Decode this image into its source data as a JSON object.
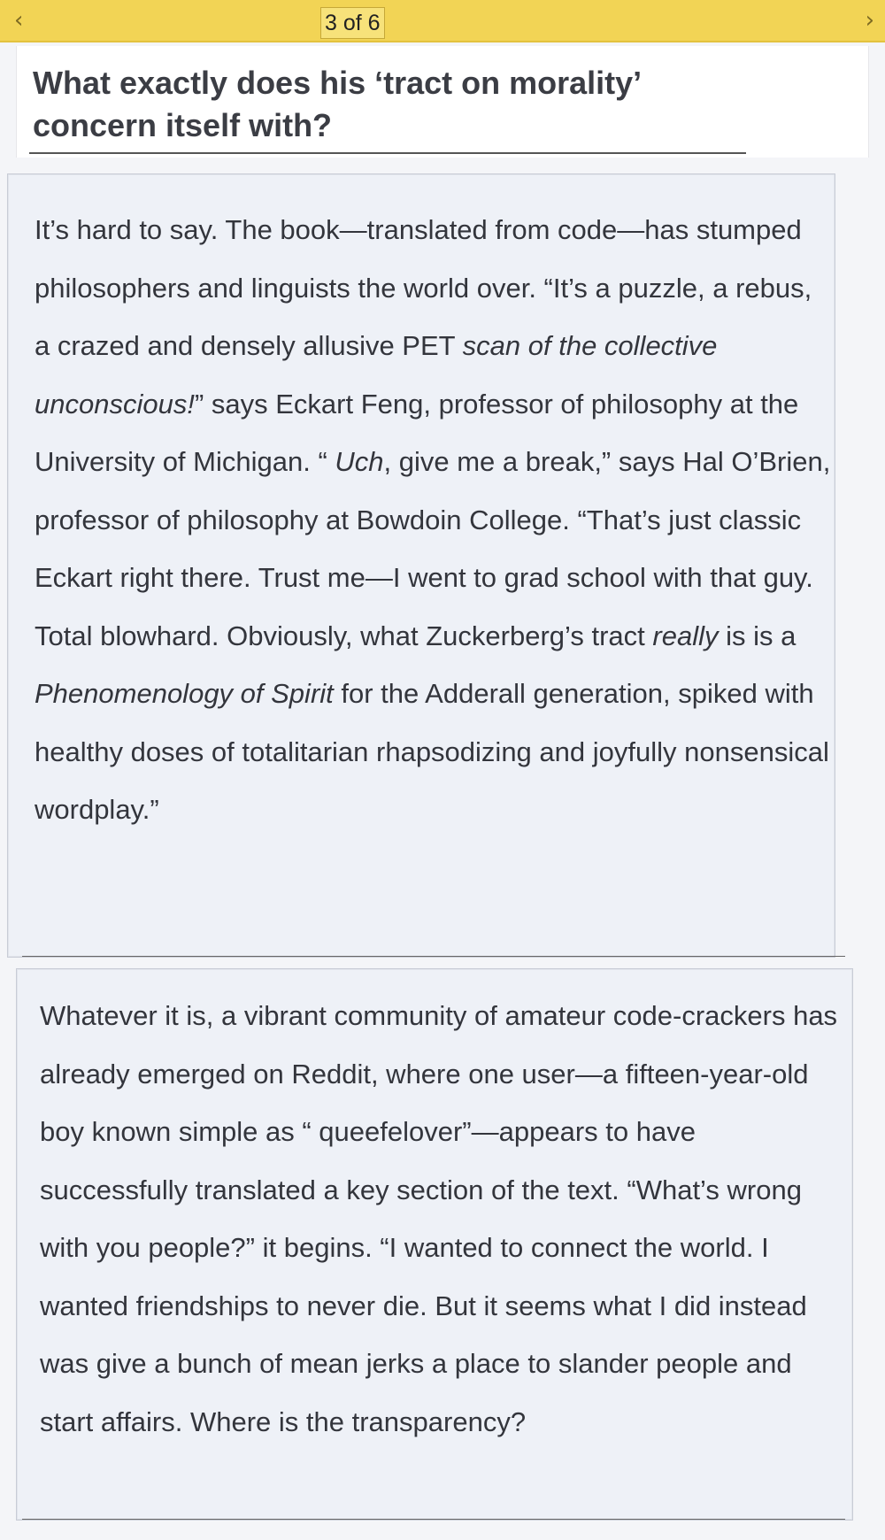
{
  "nav": {
    "prev_icon": "‹",
    "next_icon": "›",
    "page_indicator": "3 of 6"
  },
  "heading": "What exactly does his ‘tract on morality’ concern itself with?",
  "paragraph_1": [
    {
      "text": "It’s hard to say. The book—translated from code—has stumped philosophers and linguists the world over. “It’s a puzzle, a rebus, a crazed and densely allusive PET ",
      "italic": false
    },
    {
      "text": "scan of the collective unconscious!",
      "italic": true
    },
    {
      "text": "” says Eckart Feng, professor of philosophy at the University of Michigan. “ ",
      "italic": false
    },
    {
      "text": "Uch",
      "italic": true
    },
    {
      "text": ", give me a break,” says Hal O’Brien, professor of philosophy at Bowdoin College. “That’s just classic Eckart right there. Trust me—I went to grad school with that guy. Total blowhard. Obviously, what Zuckerberg’s tract ",
      "italic": false
    },
    {
      "text": "really",
      "italic": true
    },
    {
      "text": " is is a ",
      "italic": false
    },
    {
      "text": "Phenomenology of Spirit",
      "italic": true
    },
    {
      "text": " for the Adderall generation, spiked with healthy doses of totalitarian rhapsodizing and joyfully nonsensical wordplay.”",
      "italic": false
    }
  ],
  "paragraph_2": "Whatever it is, a vibrant community of amateur code-crackers has already emerged on Reddit, where one user—a fifteen-year-old boy known simple as “ queefelover”—appears to have successfully translated a key section of the text. “What’s wrong with you people?” it begins. “I wanted to connect the world. I wanted friendships to never die. But it seems what I did instead was give a bunch of mean jerks a place to slander people and start affairs. Where is the transparency?"
}
